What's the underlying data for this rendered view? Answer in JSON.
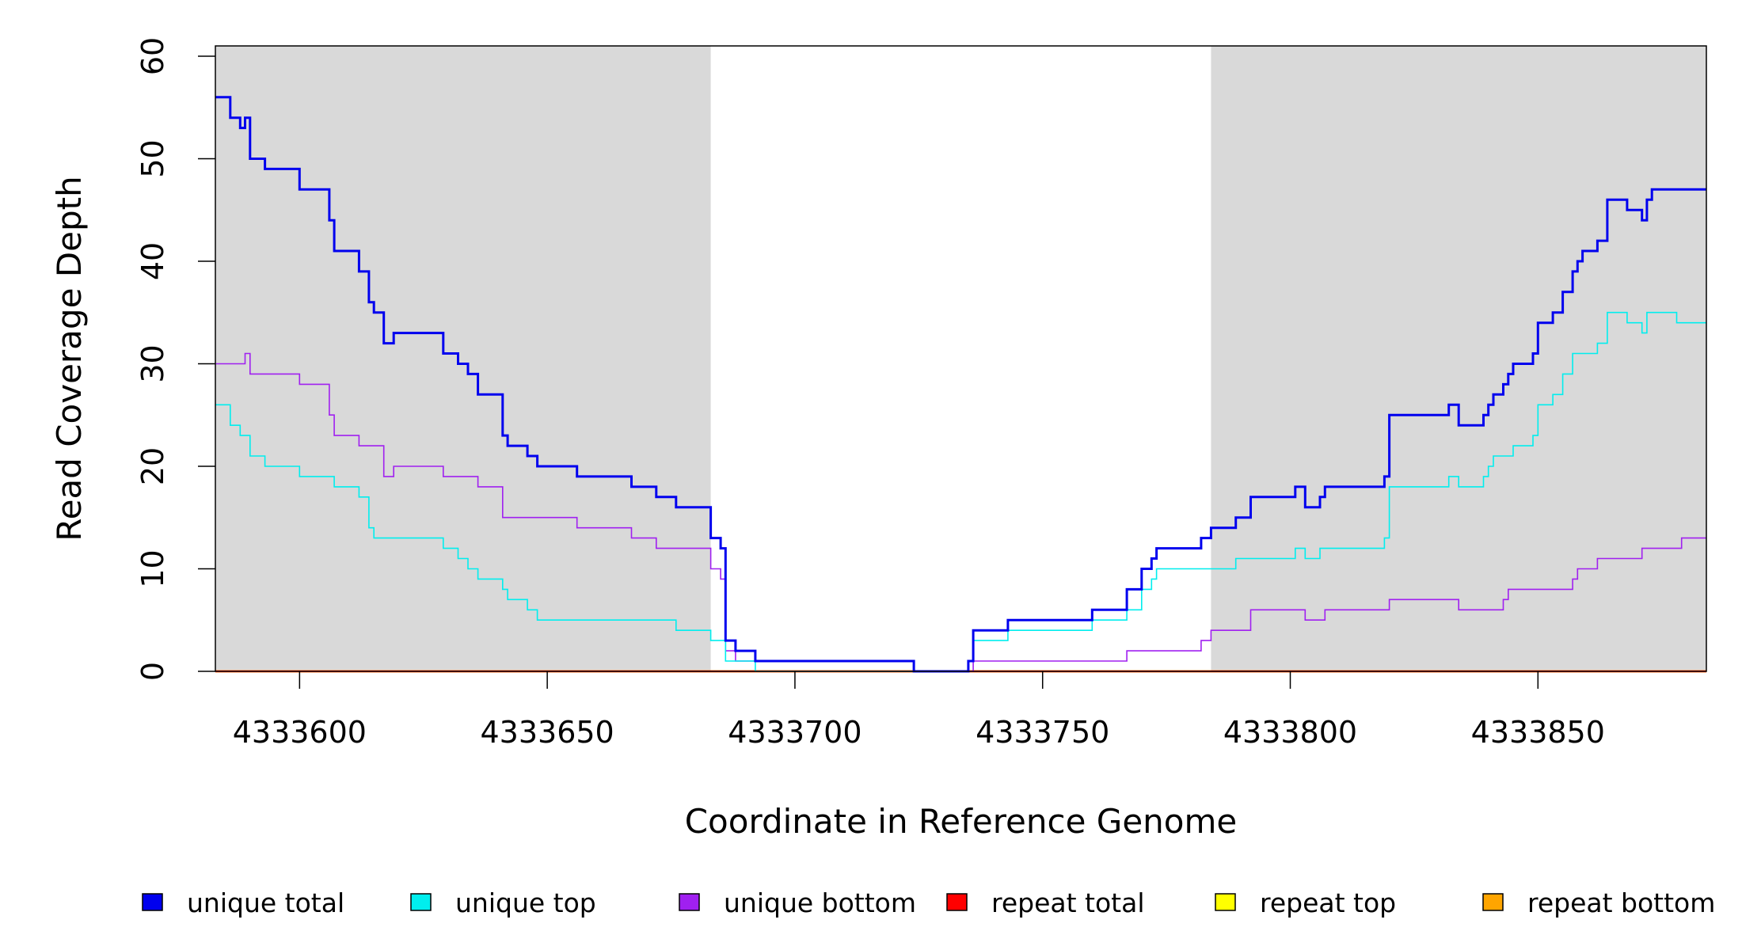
{
  "chart_data": {
    "type": "line",
    "title": "",
    "xlabel": "Coordinate in Reference Genome",
    "ylabel": "Read Coverage Depth",
    "xlim": [
      4333583,
      4333884
    ],
    "ylim": [
      0,
      61
    ],
    "x_ticks": [
      4333600,
      4333650,
      4333700,
      4333750,
      4333800,
      4333850
    ],
    "y_ticks": [
      0,
      10,
      20,
      30,
      40,
      50,
      60
    ],
    "shaded_regions": [
      {
        "from": 4333583,
        "to": 4333683,
        "color": "#d9d9d9"
      },
      {
        "from": 4333784,
        "to": 4333884,
        "color": "#d9d9d9"
      }
    ],
    "legend_position": "bottom",
    "series": [
      {
        "name": "unique total",
        "color": "#0000ee",
        "width": 3,
        "points": [
          [
            4333583,
            56
          ],
          [
            4333586,
            54
          ],
          [
            4333588,
            53
          ],
          [
            4333589,
            54
          ],
          [
            4333590,
            50
          ],
          [
            4333593,
            49
          ],
          [
            4333600,
            47
          ],
          [
            4333606,
            44
          ],
          [
            4333607,
            41
          ],
          [
            4333612,
            39
          ],
          [
            4333614,
            36
          ],
          [
            4333615,
            35
          ],
          [
            4333617,
            32
          ],
          [
            4333619,
            33
          ],
          [
            4333629,
            31
          ],
          [
            4333632,
            30
          ],
          [
            4333634,
            29
          ],
          [
            4333636,
            27
          ],
          [
            4333641,
            23
          ],
          [
            4333642,
            22
          ],
          [
            4333646,
            21
          ],
          [
            4333648,
            20
          ],
          [
            4333656,
            19
          ],
          [
            4333667,
            18
          ],
          [
            4333672,
            17
          ],
          [
            4333676,
            16
          ],
          [
            4333683,
            13
          ],
          [
            4333685,
            12
          ],
          [
            4333686,
            3
          ],
          [
            4333688,
            2
          ],
          [
            4333692,
            1
          ],
          [
            4333724,
            0
          ],
          [
            4333735,
            1
          ],
          [
            4333736,
            4
          ],
          [
            4333743,
            5
          ],
          [
            4333760,
            6
          ],
          [
            4333767,
            8
          ],
          [
            4333770,
            10
          ],
          [
            4333772,
            11
          ],
          [
            4333773,
            12
          ],
          [
            4333782,
            13
          ],
          [
            4333784,
            14
          ],
          [
            4333789,
            15
          ],
          [
            4333792,
            17
          ],
          [
            4333801,
            18
          ],
          [
            4333803,
            16
          ],
          [
            4333806,
            17
          ],
          [
            4333807,
            18
          ],
          [
            4333819,
            19
          ],
          [
            4333820,
            25
          ],
          [
            4333832,
            26
          ],
          [
            4333834,
            24
          ],
          [
            4333839,
            25
          ],
          [
            4333840,
            26
          ],
          [
            4333841,
            27
          ],
          [
            4333843,
            28
          ],
          [
            4333844,
            29
          ],
          [
            4333845,
            30
          ],
          [
            4333849,
            31
          ],
          [
            4333850,
            34
          ],
          [
            4333853,
            35
          ],
          [
            4333855,
            37
          ],
          [
            4333857,
            39
          ],
          [
            4333858,
            40
          ],
          [
            4333859,
            41
          ],
          [
            4333862,
            42
          ],
          [
            4333864,
            46
          ],
          [
            4333868,
            45
          ],
          [
            4333871,
            44
          ],
          [
            4333872,
            46
          ],
          [
            4333873,
            47
          ],
          [
            4333884,
            47
          ]
        ]
      },
      {
        "name": "unique top",
        "color": "#00eeee",
        "width": 1.6,
        "points": [
          [
            4333583,
            26
          ],
          [
            4333586,
            24
          ],
          [
            4333588,
            23
          ],
          [
            4333590,
            21
          ],
          [
            4333593,
            20
          ],
          [
            4333600,
            19
          ],
          [
            4333607,
            18
          ],
          [
            4333612,
            17
          ],
          [
            4333614,
            14
          ],
          [
            4333615,
            13
          ],
          [
            4333629,
            12
          ],
          [
            4333632,
            11
          ],
          [
            4333634,
            10
          ],
          [
            4333636,
            9
          ],
          [
            4333641,
            8
          ],
          [
            4333642,
            7
          ],
          [
            4333646,
            6
          ],
          [
            4333648,
            5
          ],
          [
            4333676,
            4
          ],
          [
            4333683,
            3
          ],
          [
            4333686,
            1
          ],
          [
            4333692,
            0
          ],
          [
            4333724,
            0
          ],
          [
            4333735,
            1
          ],
          [
            4333736,
            3
          ],
          [
            4333743,
            4
          ],
          [
            4333760,
            5
          ],
          [
            4333767,
            6
          ],
          [
            4333770,
            8
          ],
          [
            4333772,
            9
          ],
          [
            4333773,
            10
          ],
          [
            4333789,
            11
          ],
          [
            4333801,
            12
          ],
          [
            4333803,
            11
          ],
          [
            4333806,
            12
          ],
          [
            4333819,
            13
          ],
          [
            4333820,
            18
          ],
          [
            4333832,
            19
          ],
          [
            4333834,
            18
          ],
          [
            4333839,
            19
          ],
          [
            4333840,
            20
          ],
          [
            4333841,
            21
          ],
          [
            4333845,
            22
          ],
          [
            4333849,
            23
          ],
          [
            4333850,
            26
          ],
          [
            4333853,
            27
          ],
          [
            4333855,
            29
          ],
          [
            4333857,
            31
          ],
          [
            4333862,
            32
          ],
          [
            4333864,
            35
          ],
          [
            4333868,
            34
          ],
          [
            4333871,
            33
          ],
          [
            4333872,
            35
          ],
          [
            4333878,
            34
          ],
          [
            4333884,
            34
          ]
        ]
      },
      {
        "name": "unique bottom",
        "color": "#a020f0",
        "width": 1.6,
        "points": [
          [
            4333583,
            30
          ],
          [
            4333589,
            31
          ],
          [
            4333590,
            29
          ],
          [
            4333600,
            28
          ],
          [
            4333606,
            25
          ],
          [
            4333607,
            23
          ],
          [
            4333612,
            22
          ],
          [
            4333617,
            19
          ],
          [
            4333619,
            20
          ],
          [
            4333629,
            19
          ],
          [
            4333636,
            18
          ],
          [
            4333641,
            15
          ],
          [
            4333656,
            14
          ],
          [
            4333667,
            13
          ],
          [
            4333672,
            12
          ],
          [
            4333683,
            10
          ],
          [
            4333685,
            9
          ],
          [
            4333686,
            2
          ],
          [
            4333688,
            1
          ],
          [
            4333724,
            0
          ],
          [
            4333735,
            0
          ],
          [
            4333736,
            1
          ],
          [
            4333767,
            2
          ],
          [
            4333782,
            3
          ],
          [
            4333784,
            4
          ],
          [
            4333792,
            6
          ],
          [
            4333803,
            5
          ],
          [
            4333807,
            6
          ],
          [
            4333820,
            7
          ],
          [
            4333834,
            6
          ],
          [
            4333843,
            7
          ],
          [
            4333844,
            8
          ],
          [
            4333857,
            9
          ],
          [
            4333858,
            10
          ],
          [
            4333862,
            11
          ],
          [
            4333871,
            12
          ],
          [
            4333879,
            13
          ],
          [
            4333884,
            13
          ]
        ]
      },
      {
        "name": "repeat total",
        "color": "#ff0000",
        "width": 2.5,
        "points": [
          [
            4333583,
            0
          ],
          [
            4333884,
            0
          ]
        ]
      },
      {
        "name": "repeat top",
        "color": "#ffff00",
        "width": 2.5,
        "points": [
          [
            4333583,
            0
          ],
          [
            4333884,
            0
          ]
        ]
      },
      {
        "name": "repeat bottom",
        "color": "#ffa500",
        "width": 2.5,
        "points": [
          [
            4333583,
            0
          ],
          [
            4333884,
            0
          ]
        ]
      }
    ]
  }
}
